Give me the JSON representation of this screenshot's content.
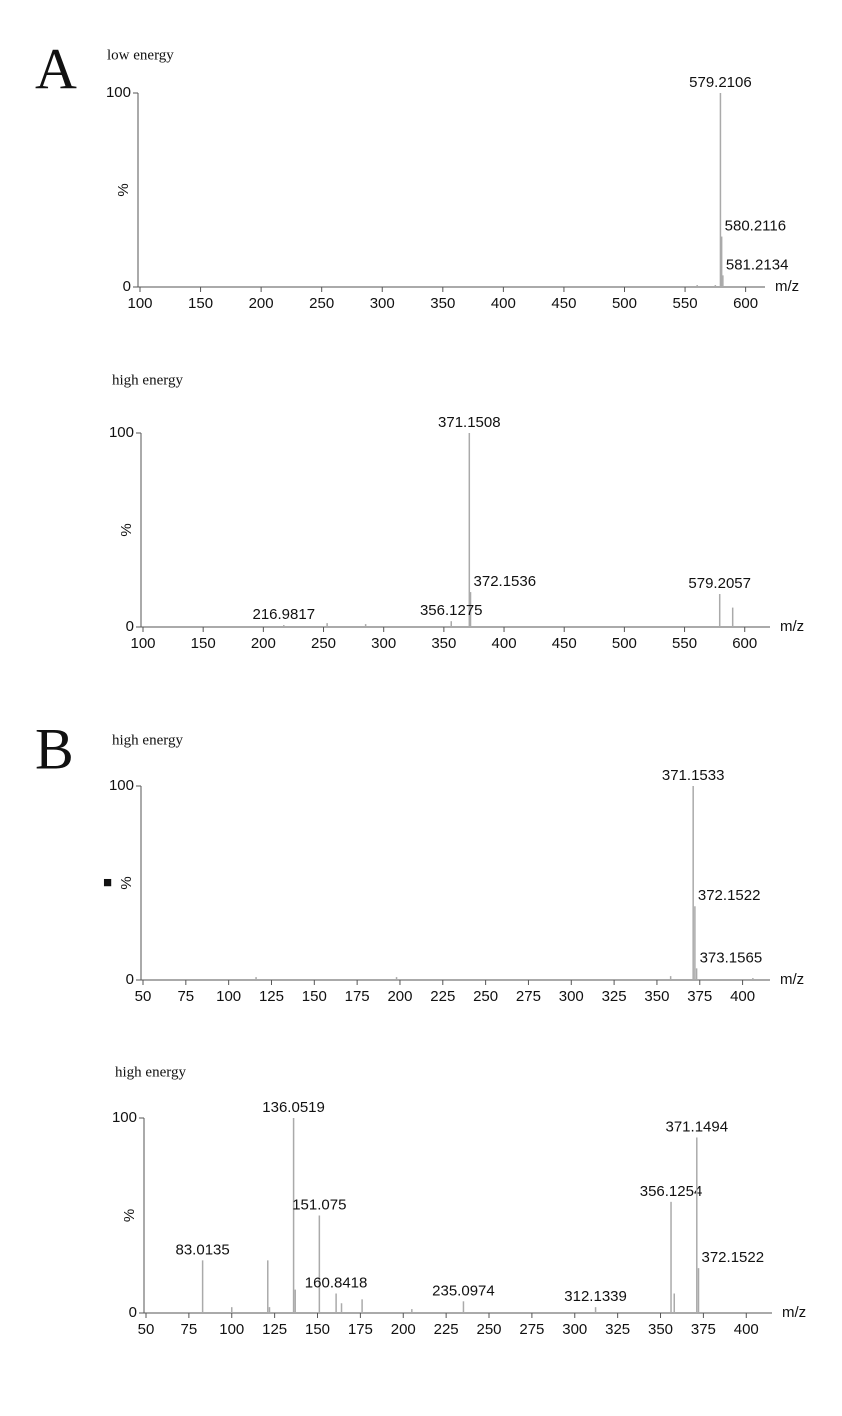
{
  "panels": [
    "A",
    "B"
  ],
  "chart_data": [
    {
      "type": "stem",
      "subtitle": "low energy",
      "y_label": "%",
      "x_label": "m/z",
      "xlim": [
        100,
        616
      ],
      "xticks": [
        100,
        150,
        200,
        250,
        300,
        350,
        400,
        450,
        500,
        550,
        600
      ],
      "ylim": [
        0,
        100
      ],
      "yticks": [
        0,
        100
      ],
      "series": [
        {
          "labeled": true,
          "color": "#aaaaaa",
          "x": [
            579.2106,
            580.2116,
            581.2134
          ],
          "values": [
            100,
            26,
            6
          ]
        },
        {
          "labeled": false,
          "color": "#aaaaaa",
          "x": [
            575,
            560
          ],
          "values": [
            1,
            1
          ]
        }
      ]
    },
    {
      "type": "stem",
      "subtitle": "high energy",
      "y_label": "%",
      "x_label": "m/z",
      "xlim": [
        100,
        621
      ],
      "xticks": [
        100,
        150,
        200,
        250,
        300,
        350,
        400,
        450,
        500,
        550,
        600
      ],
      "ylim": [
        0,
        100
      ],
      "yticks": [
        0,
        100
      ],
      "series": [
        {
          "labeled": true,
          "color": "#aaaaaa",
          "x": [
            371.1508,
            372.1536,
            356.1275,
            216.9817,
            579.2057
          ],
          "values": [
            100,
            18,
            3,
            1,
            17
          ]
        },
        {
          "labeled": false,
          "color": "#aaaaaa",
          "x": [
            590,
            253,
            285
          ],
          "values": [
            10,
            2,
            1.5
          ]
        }
      ]
    },
    {
      "type": "stem",
      "subtitle": "high energy",
      "y_label": "%",
      "x_label": "m/z",
      "annotation": "■",
      "xlim": [
        50,
        416
      ],
      "xticks": [
        50,
        75,
        100,
        125,
        150,
        175,
        200,
        225,
        250,
        275,
        300,
        325,
        350,
        375,
        400
      ],
      "ylim": [
        0,
        100
      ],
      "yticks": [
        0,
        100
      ],
      "series": [
        {
          "labeled": true,
          "color": "#aaaaaa",
          "x": [
            371.1533,
            372.1522,
            373.1565
          ],
          "values": [
            100,
            38,
            6
          ]
        },
        {
          "labeled": false,
          "color": "#aaaaaa",
          "x": [
            358,
            198,
            116,
            406
          ],
          "values": [
            2,
            1.5,
            1.5,
            1
          ]
        }
      ]
    },
    {
      "type": "stem",
      "subtitle": "high energy",
      "y_label": "%",
      "x_label": "m/z",
      "xlim": [
        50,
        415
      ],
      "xticks": [
        50,
        75,
        100,
        125,
        150,
        175,
        200,
        225,
        250,
        275,
        300,
        325,
        350,
        375,
        400
      ],
      "ylim": [
        0,
        100
      ],
      "yticks": [
        0,
        100
      ],
      "series": [
        {
          "labeled": true,
          "color": "#aaaaaa",
          "x": [
            136.0519,
            151.075,
            83.0135,
            160.8418,
            235.0974,
            312.1339,
            356.1254,
            371.1494,
            372.1522
          ],
          "values": [
            100,
            50,
            27,
            10,
            6,
            3,
            57,
            90,
            23
          ]
        },
        {
          "labeled": false,
          "color": "#aaaaaa",
          "x": [
            121,
            137,
            176,
            100,
            122,
            358,
            164,
            205
          ],
          "values": [
            27,
            12,
            7,
            3,
            3,
            10,
            5,
            2
          ]
        }
      ]
    }
  ]
}
